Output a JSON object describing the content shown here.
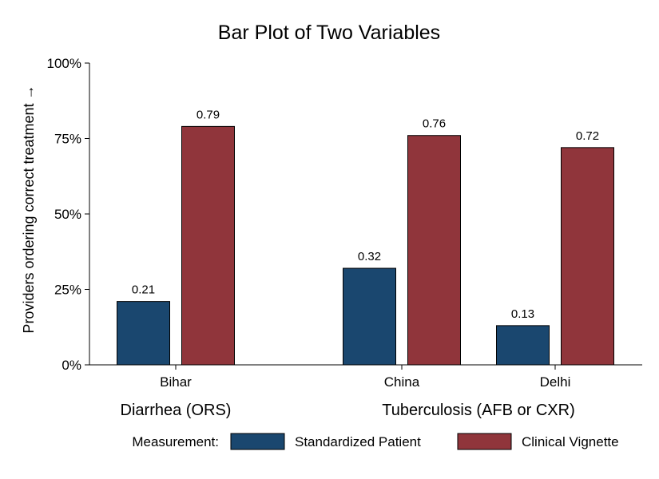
{
  "chart_data": {
    "type": "bar",
    "title": "Bar Plot of Two Variables",
    "ylabel": "Providers ordering correct treatment →",
    "xlabel": "",
    "ylim": [
      0,
      1
    ],
    "yticks": [
      {
        "value": 0,
        "label": "0%"
      },
      {
        "value": 0.25,
        "label": "25%"
      },
      {
        "value": 0.5,
        "label": "50%"
      },
      {
        "value": 0.75,
        "label": "75%"
      },
      {
        "value": 1,
        "label": "100%"
      }
    ],
    "grid": false,
    "categories": [
      "Bihar",
      "China",
      "Delhi"
    ],
    "groups": [
      {
        "label": "Diarrhea (ORS)",
        "categories": [
          "Bihar"
        ]
      },
      {
        "label": "Tuberculosis (AFB or CXR)",
        "categories": [
          "China",
          "Delhi"
        ]
      }
    ],
    "series": [
      {
        "name": "Standardized Patient",
        "color": "#1a476f",
        "values": [
          0.21,
          0.32,
          0.13
        ],
        "labels": [
          "0.21",
          "0.32",
          "0.13"
        ]
      },
      {
        "name": "Clinical Vignette",
        "color": "#90353b",
        "values": [
          0.79,
          0.76,
          0.72
        ],
        "labels": [
          "0.79",
          "0.76",
          "0.72"
        ]
      }
    ],
    "legend": {
      "title": "Measurement:",
      "placement": "bottom"
    }
  }
}
